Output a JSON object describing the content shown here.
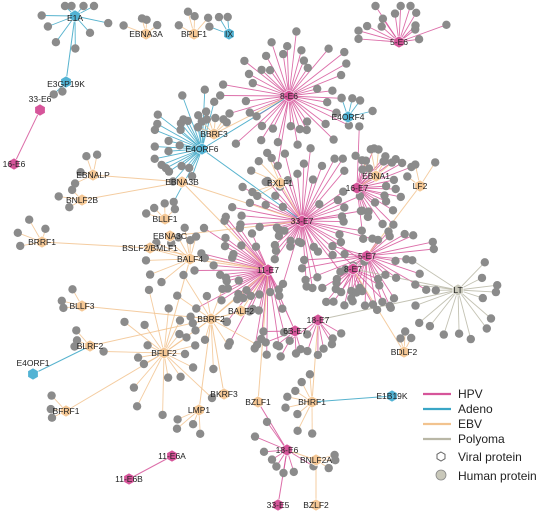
{
  "colors": {
    "HPV": "#d6559a",
    "Adeno": "#3aa6c6",
    "EBV": "#f2c38f",
    "Polyoma": "#b9b7a6",
    "human": "#8b8b8b",
    "hpv_node": "#d6559a",
    "adeno_node": "#52b3d4",
    "ebv_node": "#f5c896",
    "polyoma_node": "#c9c8ba"
  },
  "viral_proteins": [
    {
      "id": "E1A",
      "label": "E1A",
      "family": "Adeno"
    },
    {
      "id": "E3GP19K",
      "label": "E3GP19K",
      "family": "Adeno"
    },
    {
      "id": "IX",
      "label": "IX",
      "family": "Adeno"
    },
    {
      "id": "E4ORF4",
      "label": "E4ORF4",
      "family": "Adeno"
    },
    {
      "id": "E4ORF6",
      "label": "E4ORF6",
      "family": "Adeno"
    },
    {
      "id": "E4ORF1",
      "label": "E4ORF1",
      "family": "Adeno"
    },
    {
      "id": "E1B19K",
      "label": "E1B19K",
      "family": "Adeno"
    },
    {
      "id": "EBNA3A",
      "label": "EBNA3A",
      "family": "EBV"
    },
    {
      "id": "BPLF1",
      "label": "BPLF1",
      "family": "EBV"
    },
    {
      "id": "BBRF3",
      "label": "BBRF3",
      "family": "EBV"
    },
    {
      "id": "EBNALP",
      "label": "EBNALP",
      "family": "EBV"
    },
    {
      "id": "EBNA3B",
      "label": "EBNA3B",
      "family": "EBV"
    },
    {
      "id": "BNLF2B",
      "label": "BNLF2B",
      "family": "EBV"
    },
    {
      "id": "BXLF1",
      "label": "BXLF1",
      "family": "EBV"
    },
    {
      "id": "EBNA1",
      "label": "EBNA1",
      "family": "EBV"
    },
    {
      "id": "LF2",
      "label": "LF2",
      "family": "EBV"
    },
    {
      "id": "BLLF1",
      "label": "BLLF1",
      "family": "EBV"
    },
    {
      "id": "BRRF1",
      "label": "BRRF1",
      "family": "EBV"
    },
    {
      "id": "EBNA3C",
      "label": "EBNA3C",
      "family": "EBV"
    },
    {
      "id": "BSLF2BMLF1",
      "label": "BSLF2/BMLF1",
      "family": "EBV"
    },
    {
      "id": "BALF4",
      "label": "BALF4",
      "family": "EBV"
    },
    {
      "id": "BLLF3",
      "label": "BLLF3",
      "family": "EBV"
    },
    {
      "id": "BALF2",
      "label": "BALF2",
      "family": "EBV"
    },
    {
      "id": "BBRF2",
      "label": "BBRF2",
      "family": "EBV"
    },
    {
      "id": "BLRF2",
      "label": "BLRF2",
      "family": "EBV"
    },
    {
      "id": "BFLF2",
      "label": "BFLF2",
      "family": "EBV"
    },
    {
      "id": "BDLF2",
      "label": "BDLF2",
      "family": "EBV"
    },
    {
      "id": "BKRF3",
      "label": "BKRF3",
      "family": "EBV"
    },
    {
      "id": "BZLF1",
      "label": "BZLF1",
      "family": "EBV"
    },
    {
      "id": "BHRF1",
      "label": "BHRF1",
      "family": "EBV"
    },
    {
      "id": "LMP1",
      "label": "LMP1",
      "family": "EBV"
    },
    {
      "id": "BFRF1",
      "label": "BFRF1",
      "family": "EBV"
    },
    {
      "id": "BNLF2A",
      "label": "BNLF2A",
      "family": "EBV"
    },
    {
      "id": "BZLF2",
      "label": "BZLF2",
      "family": "EBV"
    },
    {
      "id": "5-E6",
      "label": "5-E6",
      "family": "HPV"
    },
    {
      "id": "8-E6",
      "label": "8-E6",
      "family": "HPV"
    },
    {
      "id": "33-E6",
      "label": "33-E6",
      "family": "HPV"
    },
    {
      "id": "16-E6",
      "label": "16-E6",
      "family": "HPV"
    },
    {
      "id": "16-E7",
      "label": "16-E7",
      "family": "HPV"
    },
    {
      "id": "33-E7",
      "label": "33-E7",
      "family": "HPV"
    },
    {
      "id": "5-E7",
      "label": "5-E7",
      "family": "HPV"
    },
    {
      "id": "8-E7",
      "label": "8-E7",
      "family": "HPV"
    },
    {
      "id": "11-E7",
      "label": "11-E7",
      "family": "HPV"
    },
    {
      "id": "18-E7",
      "label": "18-E7",
      "family": "HPV"
    },
    {
      "id": "6B-E7",
      "label": "6B-E7",
      "family": "HPV"
    },
    {
      "id": "11-E6A",
      "label": "11-E6A",
      "family": "HPV"
    },
    {
      "id": "11-E6B",
      "label": "11-E6B",
      "family": "HPV"
    },
    {
      "id": "18-E6",
      "label": "18-E6",
      "family": "HPV"
    },
    {
      "id": "33-E5",
      "label": "33-E5",
      "family": "HPV"
    },
    {
      "id": "LT",
      "label": "LT",
      "family": "Polyoma"
    }
  ],
  "legend": {
    "families": [
      {
        "label": "HPV",
        "color": "#d6559a"
      },
      {
        "label": "Adeno",
        "color": "#3aa6c6"
      },
      {
        "label": "EBV",
        "color": "#f2c38f"
      },
      {
        "label": "Polyoma",
        "color": "#b9b7a6"
      }
    ],
    "viral_protein": "Viral protein",
    "human_protein": "Human protein"
  }
}
